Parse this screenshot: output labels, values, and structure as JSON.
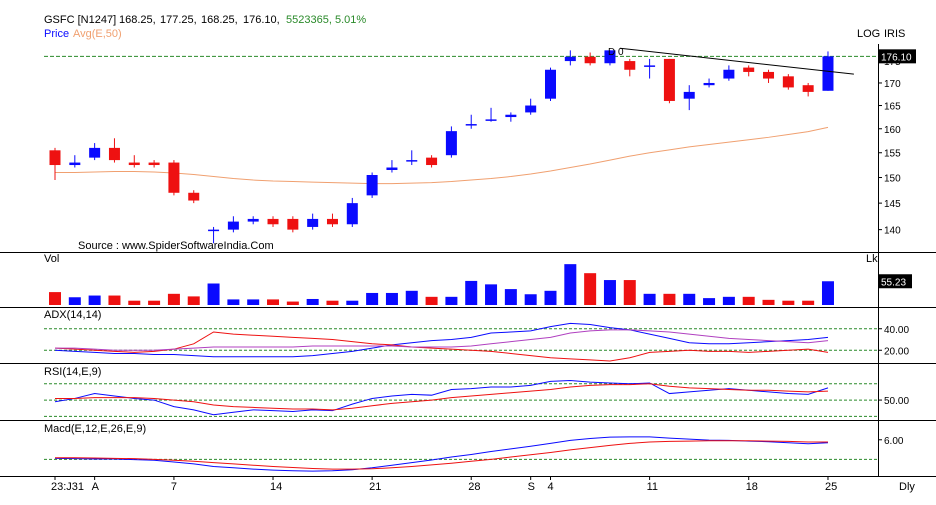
{
  "header": {
    "symbol": "GSFC [N1247]",
    "open": "168.25,",
    "high": "177.25,",
    "low": "168.25,",
    "close": "176.10,",
    "volume": "5523365,",
    "change": "5.01%",
    "price_label": "Price",
    "avg_label": "Avg(E,50)",
    "scale_mode": "LOG",
    "brand": "IRIS",
    "source": "Source : www.SpiderSoftwareIndia.Com"
  },
  "colors": {
    "up": "#0a0aff",
    "down": "#ee1111",
    "avg": "#f0a070",
    "trend": "#000000",
    "ref": "#2a8a2a",
    "change": "#2a8a2a"
  },
  "chart_data": [
    {
      "type": "candlestick",
      "title": "GSFC [N1247]",
      "x_tick_labels": [
        "23:J31",
        "A",
        "7",
        "14",
        "21",
        "28",
        "S",
        "4",
        "11",
        "18",
        "25"
      ],
      "x_tick_index": [
        0,
        2,
        6,
        11,
        16,
        21,
        24,
        25,
        30,
        35,
        39
      ],
      "ylim": [
        137,
        179
      ],
      "y_ticks": [
        "140",
        "145",
        "150",
        "155",
        "160",
        "165",
        "170",
        "175"
      ],
      "last_price_label": "176.10",
      "marker_label": "D 0",
      "candles": [
        {
          "o": 155.5,
          "h": 156.0,
          "l": 149.5,
          "c": 152.5
        },
        {
          "o": 152.5,
          "h": 154.5,
          "l": 152.0,
          "c": 153.0
        },
        {
          "o": 154.0,
          "h": 157.0,
          "l": 153.5,
          "c": 156.0
        },
        {
          "o": 156.0,
          "h": 158.0,
          "l": 153.0,
          "c": 153.5
        },
        {
          "o": 153.0,
          "h": 154.5,
          "l": 152.0,
          "c": 152.5
        },
        {
          "o": 153.0,
          "h": 153.5,
          "l": 152.0,
          "c": 152.5
        },
        {
          "o": 153.0,
          "h": 153.5,
          "l": 146.5,
          "c": 147.0
        },
        {
          "o": 147.0,
          "h": 147.5,
          "l": 145.0,
          "c": 145.5
        },
        {
          "o": 140.0,
          "h": 140.5,
          "l": 137.5,
          "c": 140.0
        },
        {
          "o": 140.0,
          "h": 142.5,
          "l": 139.5,
          "c": 141.5
        },
        {
          "o": 141.5,
          "h": 142.5,
          "l": 141.0,
          "c": 142.0
        },
        {
          "o": 142.0,
          "h": 142.5,
          "l": 140.5,
          "c": 141.0
        },
        {
          "o": 142.0,
          "h": 142.5,
          "l": 139.5,
          "c": 140.0
        },
        {
          "o": 140.5,
          "h": 143.0,
          "l": 140.0,
          "c": 142.0
        },
        {
          "o": 142.0,
          "h": 143.0,
          "l": 140.5,
          "c": 141.0
        },
        {
          "o": 141.0,
          "h": 146.0,
          "l": 140.5,
          "c": 145.0
        },
        {
          "o": 146.5,
          "h": 151.0,
          "l": 146.0,
          "c": 150.5
        },
        {
          "o": 151.5,
          "h": 153.5,
          "l": 151.0,
          "c": 152.0
        },
        {
          "o": 153.5,
          "h": 155.5,
          "l": 152.5,
          "c": 153.5
        },
        {
          "o": 154.0,
          "h": 154.5,
          "l": 152.0,
          "c": 152.5
        },
        {
          "o": 154.5,
          "h": 160.5,
          "l": 154.0,
          "c": 159.5
        },
        {
          "o": 161.0,
          "h": 163.0,
          "l": 160.0,
          "c": 161.0
        },
        {
          "o": 162.0,
          "h": 164.5,
          "l": 161.5,
          "c": 162.0
        },
        {
          "o": 162.5,
          "h": 163.5,
          "l": 161.5,
          "c": 163.0
        },
        {
          "o": 163.5,
          "h": 166.5,
          "l": 163.0,
          "c": 165.0
        },
        {
          "o": 166.5,
          "h": 173.5,
          "l": 166.0,
          "c": 173.0
        },
        {
          "o": 175.0,
          "h": 177.5,
          "l": 174.0,
          "c": 176.0
        },
        {
          "o": 176.0,
          "h": 177.0,
          "l": 174.0,
          "c": 174.5
        },
        {
          "o": 174.5,
          "h": 177.5,
          "l": 174.0,
          "c": 177.5
        },
        {
          "o": 175.0,
          "h": 175.5,
          "l": 171.5,
          "c": 173.0
        },
        {
          "o": 174.0,
          "h": 175.5,
          "l": 171.0,
          "c": 174.0
        },
        {
          "o": 175.5,
          "h": 175.5,
          "l": 165.5,
          "c": 166.0
        },
        {
          "o": 166.5,
          "h": 169.5,
          "l": 164.0,
          "c": 168.0
        },
        {
          "o": 169.5,
          "h": 171.0,
          "l": 169.0,
          "c": 170.0
        },
        {
          "o": 171.0,
          "h": 174.0,
          "l": 170.5,
          "c": 173.0
        },
        {
          "o": 173.5,
          "h": 174.0,
          "l": 171.5,
          "c": 172.5
        },
        {
          "o": 172.5,
          "h": 173.0,
          "l": 170.0,
          "c": 171.0
        },
        {
          "o": 171.5,
          "h": 172.0,
          "l": 168.5,
          "c": 169.0
        },
        {
          "o": 169.5,
          "h": 170.0,
          "l": 167.0,
          "c": 168.0
        },
        {
          "o": 168.25,
          "h": 177.25,
          "l": 168.25,
          "c": 176.1
        }
      ],
      "avg_series": [
        151.0,
        151.0,
        151.1,
        151.2,
        151.2,
        151.1,
        150.9,
        150.6,
        150.2,
        149.8,
        149.5,
        149.3,
        149.2,
        149.1,
        149.0,
        148.9,
        148.8,
        148.8,
        148.9,
        149.0,
        149.2,
        149.5,
        149.8,
        150.2,
        150.7,
        151.3,
        152.0,
        152.7,
        153.5,
        154.3,
        155.0,
        155.6,
        156.2,
        156.7,
        157.2,
        157.7,
        158.2,
        158.8,
        159.4,
        160.3
      ]
    },
    {
      "type": "bar",
      "title": "Vol",
      "unit": "Lk",
      "last_value_label": "55.23",
      "values": [
        30,
        18,
        22,
        22,
        10,
        10,
        26,
        20,
        50,
        13,
        13,
        13,
        8,
        14,
        10,
        10,
        28,
        28,
        33,
        19,
        19,
        56,
        48,
        37,
        25,
        33,
        95,
        74,
        58,
        58,
        26,
        26,
        26,
        16,
        19,
        19,
        12,
        10,
        10,
        55.23
      ],
      "ylim": [
        0,
        100
      ]
    },
    {
      "type": "line",
      "title": "ADX(14,14)",
      "y_ticks": [
        "40.00",
        "20.00"
      ],
      "ylim": [
        10,
        50
      ],
      "ref_lines": [
        40,
        20
      ],
      "series": [
        {
          "color": "#0a0aff",
          "values": [
            20,
            19,
            18,
            17,
            17,
            16,
            16,
            15,
            14,
            14,
            14,
            14,
            14,
            15,
            17,
            19,
            22,
            25,
            27,
            29,
            30,
            32,
            36,
            37,
            38,
            42,
            45,
            44,
            41,
            39,
            35,
            31,
            27,
            26,
            26,
            27,
            28,
            29,
            30,
            32
          ]
        },
        {
          "color": "#ee1111",
          "values": [
            22,
            21,
            20,
            19,
            18,
            19,
            21,
            26,
            37,
            35,
            34,
            33,
            32,
            31,
            30,
            28,
            26,
            25,
            23,
            22,
            21,
            20,
            19,
            17,
            15,
            13,
            12,
            11,
            10,
            13,
            18,
            19,
            20,
            19,
            19,
            18,
            19,
            20,
            21,
            18
          ]
        },
        {
          "color": "#b040c0",
          "values": [
            22,
            22,
            21,
            20,
            20,
            20,
            21,
            22,
            23,
            23,
            23,
            23,
            23,
            24,
            24,
            24,
            24,
            24,
            23,
            23,
            23,
            24,
            26,
            28,
            30,
            32,
            36,
            38,
            39,
            39,
            38,
            37,
            35,
            33,
            31,
            30,
            29,
            28,
            27,
            29
          ]
        }
      ]
    },
    {
      "type": "line",
      "title": "RSI(14,E,9)",
      "y_ticks": [
        "50.00"
      ],
      "ylim": [
        28,
        82
      ],
      "ref_lines": [
        70,
        30,
        50
      ],
      "series": [
        {
          "color": "#0a0aff",
          "values": [
            48,
            52,
            58,
            55,
            52,
            50,
            42,
            38,
            32,
            35,
            38,
            37,
            36,
            38,
            37,
            45,
            52,
            55,
            57,
            56,
            63,
            64,
            66,
            66,
            68,
            73,
            74,
            72,
            71,
            70,
            71,
            58,
            60,
            62,
            64,
            62,
            60,
            58,
            57,
            65
          ]
        },
        {
          "color": "#ee1111",
          "values": [
            52,
            52,
            53,
            53,
            53,
            52,
            50,
            48,
            44,
            42,
            41,
            40,
            39,
            39,
            38,
            40,
            43,
            46,
            48,
            50,
            53,
            55,
            57,
            59,
            61,
            63,
            66,
            68,
            69,
            69,
            70,
            67,
            65,
            64,
            63,
            62,
            62,
            61,
            60,
            61
          ]
        }
      ]
    },
    {
      "type": "line",
      "title": "Macd(E,12,E,26,E,9)",
      "y_ticks": [
        "6.00"
      ],
      "ylim": [
        -4.5,
        9
      ],
      "ref_lines": [
        0
      ],
      "series": [
        {
          "color": "#0a0aff",
          "values": [
            0.3,
            0.2,
            0.1,
            0.1,
            -0.1,
            -0.3,
            -0.8,
            -1.4,
            -2.2,
            -2.6,
            -3.0,
            -3.3,
            -3.5,
            -3.6,
            -3.5,
            -3.2,
            -2.6,
            -1.8,
            -1.0,
            -0.2,
            0.7,
            1.5,
            2.4,
            3.2,
            4.0,
            4.9,
            5.8,
            6.4,
            6.8,
            6.9,
            6.9,
            6.5,
            6.2,
            5.9,
            5.8,
            5.6,
            5.4,
            5.1,
            4.8,
            5.1
          ]
        },
        {
          "color": "#ee1111",
          "values": [
            0.5,
            0.5,
            0.4,
            0.3,
            0.2,
            0.0,
            -0.3,
            -0.6,
            -1.0,
            -1.4,
            -1.8,
            -2.2,
            -2.5,
            -2.8,
            -3.0,
            -3.0,
            -2.9,
            -2.6,
            -2.2,
            -1.7,
            -1.2,
            -0.6,
            0.0,
            0.7,
            1.4,
            2.1,
            2.9,
            3.6,
            4.3,
            4.9,
            5.3,
            5.5,
            5.6,
            5.7,
            5.7,
            5.7,
            5.6,
            5.5,
            5.3,
            5.3
          ]
        }
      ]
    }
  ]
}
